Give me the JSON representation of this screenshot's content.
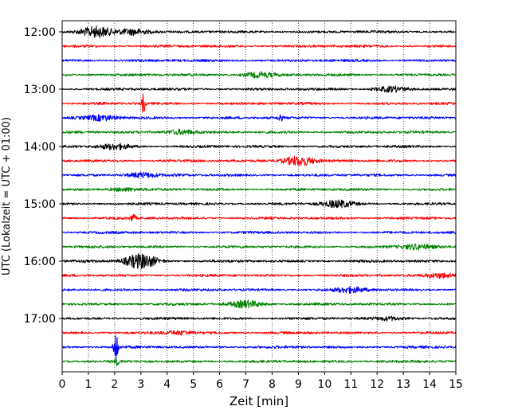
{
  "chart_data": {
    "type": "line",
    "title": "",
    "xlabel": "Zeit  [min]",
    "ylabel": "UTC (Lokalzeit = UTC + 01:00)",
    "xlim": [
      0,
      15
    ],
    "x_ticks": [
      "0",
      "1",
      "2",
      "3",
      "4",
      "5",
      "6",
      "7",
      "8",
      "9",
      "10",
      "11",
      "12",
      "13",
      "14",
      "15"
    ],
    "y_ticks": [
      {
        "label": "12:00",
        "trace": 0
      },
      {
        "label": "13:00",
        "trace": 4
      },
      {
        "label": "14:00",
        "trace": 8
      },
      {
        "label": "15:00",
        "trace": 12
      },
      {
        "label": "16:00",
        "trace": 16
      },
      {
        "label": "17:00",
        "trace": 20
      }
    ],
    "x_grid": "dotted vertical lines at each minute",
    "trace_interval_minutes": 15,
    "trace_count": 24,
    "trace_colors": [
      "#000000",
      "#ff0000",
      "#0000ff",
      "#008000"
    ],
    "traces": [
      {
        "start": "12:00",
        "color": "#000000",
        "events": [
          {
            "t": 1.3,
            "amp": 6
          },
          {
            "t": 2.7,
            "amp": 4
          }
        ]
      },
      {
        "start": "12:15",
        "color": "#ff0000",
        "events": []
      },
      {
        "start": "12:30",
        "color": "#0000ff",
        "events": []
      },
      {
        "start": "12:45",
        "color": "#008000",
        "events": [
          {
            "t": 7.5,
            "amp": 3
          }
        ]
      },
      {
        "start": "13:00",
        "color": "#000000",
        "events": [
          {
            "t": 12.5,
            "amp": 3
          }
        ]
      },
      {
        "start": "13:15",
        "color": "#ff0000",
        "events": [
          {
            "t": 3.1,
            "amp": 12,
            "spike": true
          }
        ]
      },
      {
        "start": "13:30",
        "color": "#0000ff",
        "events": [
          {
            "t": 1.5,
            "amp": 3
          },
          {
            "t": 8.3,
            "amp": 5,
            "spike": true
          }
        ]
      },
      {
        "start": "13:45",
        "color": "#008000",
        "events": [
          {
            "t": 4.5,
            "amp": 3
          }
        ]
      },
      {
        "start": "14:00",
        "color": "#000000",
        "events": [
          {
            "t": 2.0,
            "amp": 3
          }
        ]
      },
      {
        "start": "14:15",
        "color": "#ff0000",
        "events": [
          {
            "t": 9.0,
            "amp": 6
          }
        ]
      },
      {
        "start": "14:30",
        "color": "#0000ff",
        "events": [
          {
            "t": 3.0,
            "amp": 3
          }
        ]
      },
      {
        "start": "14:45",
        "color": "#008000",
        "events": [
          {
            "t": 2.3,
            "amp": 2
          }
        ]
      },
      {
        "start": "15:00",
        "color": "#000000",
        "events": [
          {
            "t": 10.5,
            "amp": 4
          }
        ]
      },
      {
        "start": "15:15",
        "color": "#ff0000",
        "events": [
          {
            "t": 2.7,
            "amp": 6,
            "spike": true
          }
        ]
      },
      {
        "start": "15:30",
        "color": "#0000ff",
        "events": []
      },
      {
        "start": "15:45",
        "color": "#008000",
        "events": [
          {
            "t": 13.5,
            "amp": 3
          }
        ]
      },
      {
        "start": "16:00",
        "color": "#000000",
        "events": [
          {
            "t": 3.0,
            "amp": 9
          }
        ]
      },
      {
        "start": "16:15",
        "color": "#ff0000",
        "events": [
          {
            "t": 14.5,
            "amp": 3
          }
        ]
      },
      {
        "start": "16:30",
        "color": "#0000ff",
        "events": [
          {
            "t": 11.0,
            "amp": 3
          }
        ]
      },
      {
        "start": "16:45",
        "color": "#008000",
        "events": [
          {
            "t": 7.0,
            "amp": 4
          }
        ]
      },
      {
        "start": "17:00",
        "color": "#000000",
        "events": [
          {
            "t": 12.5,
            "amp": 2
          }
        ]
      },
      {
        "start": "17:15",
        "color": "#ff0000",
        "events": [
          {
            "t": 4.5,
            "amp": 2
          }
        ]
      },
      {
        "start": "17:30",
        "color": "#0000ff",
        "events": [
          {
            "t": 2.05,
            "amp": 22,
            "spike": true
          }
        ]
      },
      {
        "start": "17:45",
        "color": "#008000",
        "events": [
          {
            "t": 2.1,
            "amp": 4,
            "spike": true
          }
        ]
      }
    ]
  }
}
